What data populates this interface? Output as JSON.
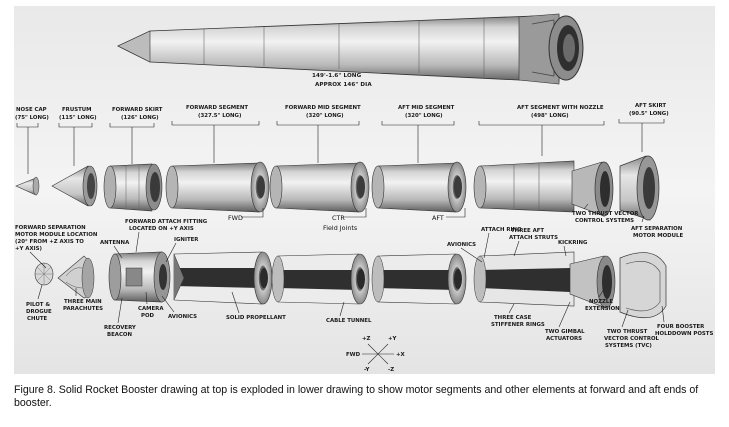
{
  "figure": {
    "top_length": "149'-1.6\" LONG",
    "top_dia": "APPROX 146\" DIA",
    "segments": {
      "nose_cap": {
        "name": "NOSE CAP",
        "len": "(75\" LONG)"
      },
      "frustum": {
        "name": "FRUSTUM",
        "len": "(115\" LONG)"
      },
      "forward_skirt": {
        "name": "FORWARD SKIRT",
        "len": "(126\" LONG)"
      },
      "forward_segment": {
        "name": "FORWARD SEGMENT",
        "len": "(327.5\" LONG)"
      },
      "forward_mid": {
        "name": "FORWARD MID SEGMENT",
        "len": "(320\" LONG)"
      },
      "aft_mid": {
        "name": "AFT MID SEGMENT",
        "len": "(320\" LONG)"
      },
      "aft_nozzle": {
        "name": "AFT SEGMENT WITH NOZZLE",
        "len": "(498\" LONG)"
      },
      "aft_skirt": {
        "name": "AFT SKIRT",
        "len": "(90.5\" LONG)"
      }
    },
    "joints": {
      "fwd": "FWD",
      "ctr": "CTR",
      "aft": "AFT",
      "field": "Field Joints"
    },
    "callouts": {
      "fwd_sep_1": "FORWARD SEPARATION",
      "fwd_sep_2": "MOTOR MODULE LOCATION",
      "fwd_sep_3": "(20° FROM +Z AXIS TO",
      "fwd_sep_4": "+Y AXIS)",
      "antenna": "ANTENNA",
      "fwd_attach_1": "FORWARD ATTACH FITTING",
      "fwd_attach_2": "LOCATED ON +Y AXIS",
      "igniter": "IGNITER",
      "pilot_1": "PILOT &",
      "pilot_2": "DROGUE",
      "pilot_3": "CHUTE",
      "main_chutes_1": "THREE MAIN",
      "main_chutes_2": "PARACHUTES",
      "recovery_1": "RECOVERY",
      "recovery_2": "BEACON",
      "camera_1": "CAMERA",
      "camera_2": "POD",
      "avionics_fwd": "AVIONICS",
      "propellant": "SOLID PROPELLANT",
      "cable": "CABLE TUNNEL",
      "tvc_systems_1": "TWO THRUST VECTOR",
      "tvc_systems_2": "CONTROL SYSTEMS",
      "aft_sep_1": "AFT SEPARATION",
      "aft_sep_2": "MOTOR MODULE",
      "attach_ring": "ATTACH RING",
      "avionics_aft": "AVIONICS",
      "struts_1": "THREE AFT",
      "struts_2": "ATTACH STRUTS",
      "kicking": "KICKRING",
      "stiff_1": "THREE CASE",
      "stiff_2": "STIFFENER RINGS",
      "nozzle_ext_1": "NOZZLE",
      "nozzle_ext_2": "EXTENSION",
      "gimbal_1": "TWO GIMBAL",
      "gimbal_2": "ACTUATORS",
      "tvc_two_1": "TWO THRUST",
      "tvc_two_2": "VECTOR CONTROL",
      "tvc_two_3": "SYSTEMS (TVC)",
      "holddown_1": "FOUR BOOSTER",
      "holddown_2": "HOLDDOWN POSTS"
    },
    "axes": {
      "pz": "+Z",
      "py": "+Y",
      "fwd": "FWD",
      "px": "+X",
      "my": "-Y",
      "mz": "-Z"
    }
  },
  "caption": "Figure 8. Solid Rocket Booster drawing at top is exploded in lower drawing to show motor segments and other elements at forward and aft ends of booster."
}
